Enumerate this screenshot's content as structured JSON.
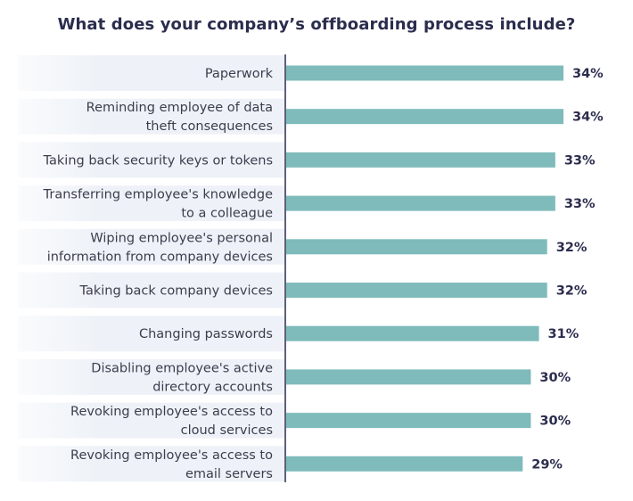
{
  "chart_data": {
    "type": "bar",
    "orientation": "horizontal",
    "title": "What does your company’s offboarding process include?",
    "categories": [
      [
        "Paperwork"
      ],
      [
        "Reminding employee of data",
        "theft consequences"
      ],
      [
        "Taking back security keys or tokens"
      ],
      [
        "Transferring employee's knowledge",
        "to a colleague"
      ],
      [
        "Wiping employee's personal",
        "information from company devices"
      ],
      [
        "Taking back company devices"
      ],
      [
        "Changing passwords"
      ],
      [
        "Disabling employee's active",
        "directory accounts"
      ],
      [
        "Revoking employee's access to",
        "cloud services"
      ],
      [
        "Revoking employee's access to",
        "email servers"
      ]
    ],
    "values": [
      34,
      34,
      33,
      33,
      32,
      32,
      31,
      30,
      30,
      29
    ],
    "value_labels": [
      "34%",
      "34%",
      "33%",
      "33%",
      "32%",
      "32%",
      "31%",
      "30%",
      "30%",
      "29%"
    ],
    "xlim": [
      0,
      34
    ],
    "grid": false,
    "legend": "none",
    "colors": {
      "bar": "#7fbbbb",
      "axis": "#2b2d4e",
      "row_bg": "#eef2f8",
      "title": "#2b2d4e"
    }
  }
}
